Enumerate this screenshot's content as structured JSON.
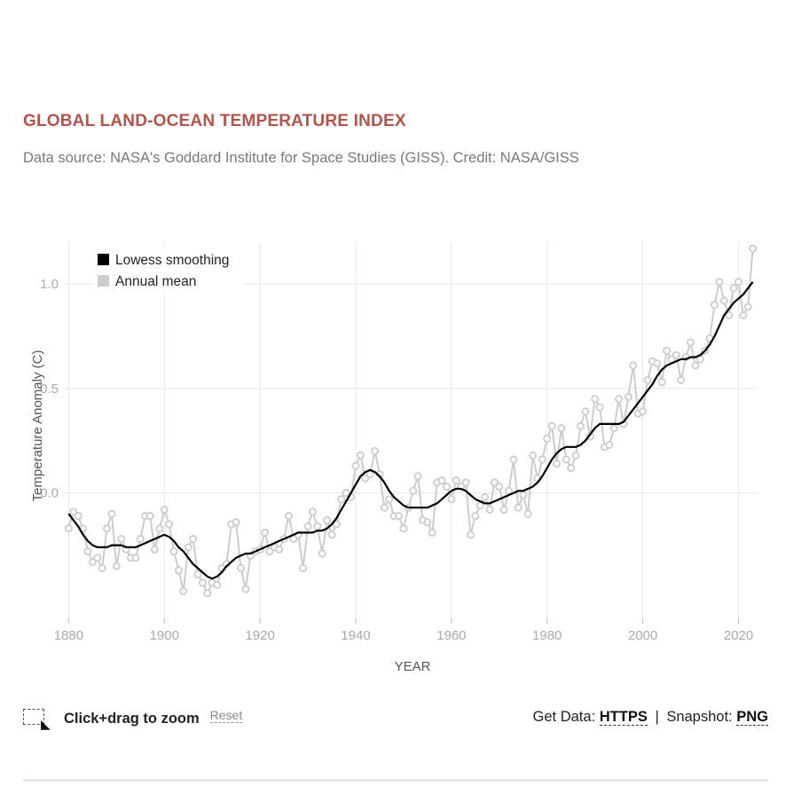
{
  "header": {
    "title": "GLOBAL LAND-OCEAN TEMPERATURE INDEX",
    "subtitle": "Data source: NASA's Goddard Institute for Space Studies (GISS). Credit: NASA/GISS"
  },
  "footer": {
    "zoom_label": "Click+drag to zoom",
    "reset_label": "Reset",
    "get_data_label": "Get Data:",
    "https_label": "HTTPS",
    "separator": "|",
    "snapshot_label": "Snapshot:",
    "png_label": "PNG"
  },
  "icons": {
    "zoom": "zoom-box-icon",
    "cursor": "cursor-icon"
  },
  "colors": {
    "title": "#b5534a",
    "smoothing": "#000000",
    "annual": "#cccccc",
    "grid": "#e6e6e6"
  },
  "chart_data": {
    "type": "line",
    "xlabel": "YEAR",
    "ylabel": "Temperature Anomaly (C)",
    "xlim": [
      1879,
      2024
    ],
    "ylim": [
      -0.6,
      1.2
    ],
    "xticks": [
      1880,
      1900,
      1920,
      1940,
      1960,
      1980,
      2000,
      2020
    ],
    "yticks": [
      0.0,
      0.5,
      1.0
    ],
    "ytick_labels": [
      "0.0",
      "0.5",
      "1.0"
    ],
    "grid": true,
    "legend_position": "top-left",
    "x": [
      1880,
      1881,
      1882,
      1883,
      1884,
      1885,
      1886,
      1887,
      1888,
      1889,
      1890,
      1891,
      1892,
      1893,
      1894,
      1895,
      1896,
      1897,
      1898,
      1899,
      1900,
      1901,
      1902,
      1903,
      1904,
      1905,
      1906,
      1907,
      1908,
      1909,
      1910,
      1911,
      1912,
      1913,
      1914,
      1915,
      1916,
      1917,
      1918,
      1919,
      1920,
      1921,
      1922,
      1923,
      1924,
      1925,
      1926,
      1927,
      1928,
      1929,
      1930,
      1931,
      1932,
      1933,
      1934,
      1935,
      1936,
      1937,
      1938,
      1939,
      1940,
      1941,
      1942,
      1943,
      1944,
      1945,
      1946,
      1947,
      1948,
      1949,
      1950,
      1951,
      1952,
      1953,
      1954,
      1955,
      1956,
      1957,
      1958,
      1959,
      1960,
      1961,
      1962,
      1963,
      1964,
      1965,
      1966,
      1967,
      1968,
      1969,
      1970,
      1971,
      1972,
      1973,
      1974,
      1975,
      1976,
      1977,
      1978,
      1979,
      1980,
      1981,
      1982,
      1983,
      1984,
      1985,
      1986,
      1987,
      1988,
      1989,
      1990,
      1991,
      1992,
      1993,
      1994,
      1995,
      1996,
      1997,
      1998,
      1999,
      2000,
      2001,
      2002,
      2003,
      2004,
      2005,
      2006,
      2007,
      2008,
      2009,
      2010,
      2011,
      2012,
      2013,
      2014,
      2015,
      2016,
      2017,
      2018,
      2019,
      2020,
      2021,
      2022,
      2023
    ],
    "series": [
      {
        "name": "Annual mean",
        "values": [
          -0.17,
          -0.09,
          -0.11,
          -0.17,
          -0.28,
          -0.33,
          -0.31,
          -0.36,
          -0.17,
          -0.1,
          -0.35,
          -0.22,
          -0.27,
          -0.31,
          -0.31,
          -0.22,
          -0.11,
          -0.11,
          -0.27,
          -0.17,
          -0.08,
          -0.15,
          -0.28,
          -0.37,
          -0.47,
          -0.26,
          -0.22,
          -0.39,
          -0.43,
          -0.48,
          -0.43,
          -0.44,
          -0.36,
          -0.34,
          -0.15,
          -0.14,
          -0.36,
          -0.46,
          -0.3,
          -0.28,
          -0.27,
          -0.19,
          -0.28,
          -0.26,
          -0.27,
          -0.22,
          -0.11,
          -0.22,
          -0.2,
          -0.36,
          -0.16,
          -0.09,
          -0.16,
          -0.29,
          -0.13,
          -0.2,
          -0.15,
          -0.03,
          0.0,
          -0.02,
          0.13,
          0.18,
          0.07,
          0.09,
          0.2,
          0.09,
          -0.07,
          -0.03,
          -0.11,
          -0.11,
          -0.17,
          -0.07,
          0.01,
          0.08,
          -0.13,
          -0.14,
          -0.19,
          0.05,
          0.06,
          0.03,
          -0.03,
          0.06,
          0.03,
          0.05,
          -0.2,
          -0.11,
          -0.06,
          -0.02,
          -0.08,
          0.05,
          0.03,
          -0.08,
          0.01,
          0.16,
          -0.07,
          -0.01,
          -0.1,
          0.18,
          0.07,
          0.16,
          0.26,
          0.32,
          0.14,
          0.31,
          0.16,
          0.12,
          0.18,
          0.32,
          0.39,
          0.27,
          0.45,
          0.41,
          0.22,
          0.23,
          0.31,
          0.45,
          0.33,
          0.46,
          0.61,
          0.38,
          0.39,
          0.54,
          0.63,
          0.62,
          0.53,
          0.68,
          0.64,
          0.66,
          0.54,
          0.65,
          0.72,
          0.61,
          0.64,
          0.68,
          0.74,
          0.9,
          1.01,
          0.92,
          0.85,
          0.98,
          1.01,
          0.85,
          0.89,
          1.17
        ]
      },
      {
        "name": "Lowess smoothing",
        "values": [
          -0.1,
          -0.13,
          -0.16,
          -0.2,
          -0.23,
          -0.25,
          -0.26,
          -0.26,
          -0.26,
          -0.25,
          -0.25,
          -0.25,
          -0.26,
          -0.26,
          -0.26,
          -0.25,
          -0.24,
          -0.23,
          -0.22,
          -0.21,
          -0.2,
          -0.21,
          -0.23,
          -0.26,
          -0.28,
          -0.31,
          -0.34,
          -0.36,
          -0.38,
          -0.4,
          -0.41,
          -0.4,
          -0.38,
          -0.35,
          -0.33,
          -0.31,
          -0.3,
          -0.29,
          -0.29,
          -0.28,
          -0.27,
          -0.26,
          -0.25,
          -0.24,
          -0.23,
          -0.22,
          -0.21,
          -0.2,
          -0.19,
          -0.19,
          -0.19,
          -0.19,
          -0.18,
          -0.18,
          -0.17,
          -0.15,
          -0.12,
          -0.08,
          -0.04,
          0.0,
          0.04,
          0.08,
          0.1,
          0.11,
          0.1,
          0.08,
          0.05,
          0.01,
          -0.02,
          -0.04,
          -0.06,
          -0.07,
          -0.07,
          -0.07,
          -0.07,
          -0.07,
          -0.06,
          -0.05,
          -0.03,
          -0.01,
          0.01,
          0.02,
          0.02,
          0.01,
          -0.01,
          -0.03,
          -0.04,
          -0.05,
          -0.05,
          -0.04,
          -0.03,
          -0.02,
          -0.01,
          0.0,
          0.01,
          0.01,
          0.02,
          0.03,
          0.05,
          0.08,
          0.12,
          0.16,
          0.19,
          0.21,
          0.22,
          0.22,
          0.22,
          0.23,
          0.25,
          0.28,
          0.31,
          0.33,
          0.33,
          0.33,
          0.33,
          0.33,
          0.34,
          0.37,
          0.4,
          0.43,
          0.46,
          0.49,
          0.52,
          0.56,
          0.59,
          0.61,
          0.62,
          0.63,
          0.64,
          0.64,
          0.65,
          0.65,
          0.66,
          0.68,
          0.71,
          0.75,
          0.8,
          0.85,
          0.88,
          0.91,
          0.93,
          0.95,
          0.98,
          1.01
        ]
      }
    ]
  }
}
